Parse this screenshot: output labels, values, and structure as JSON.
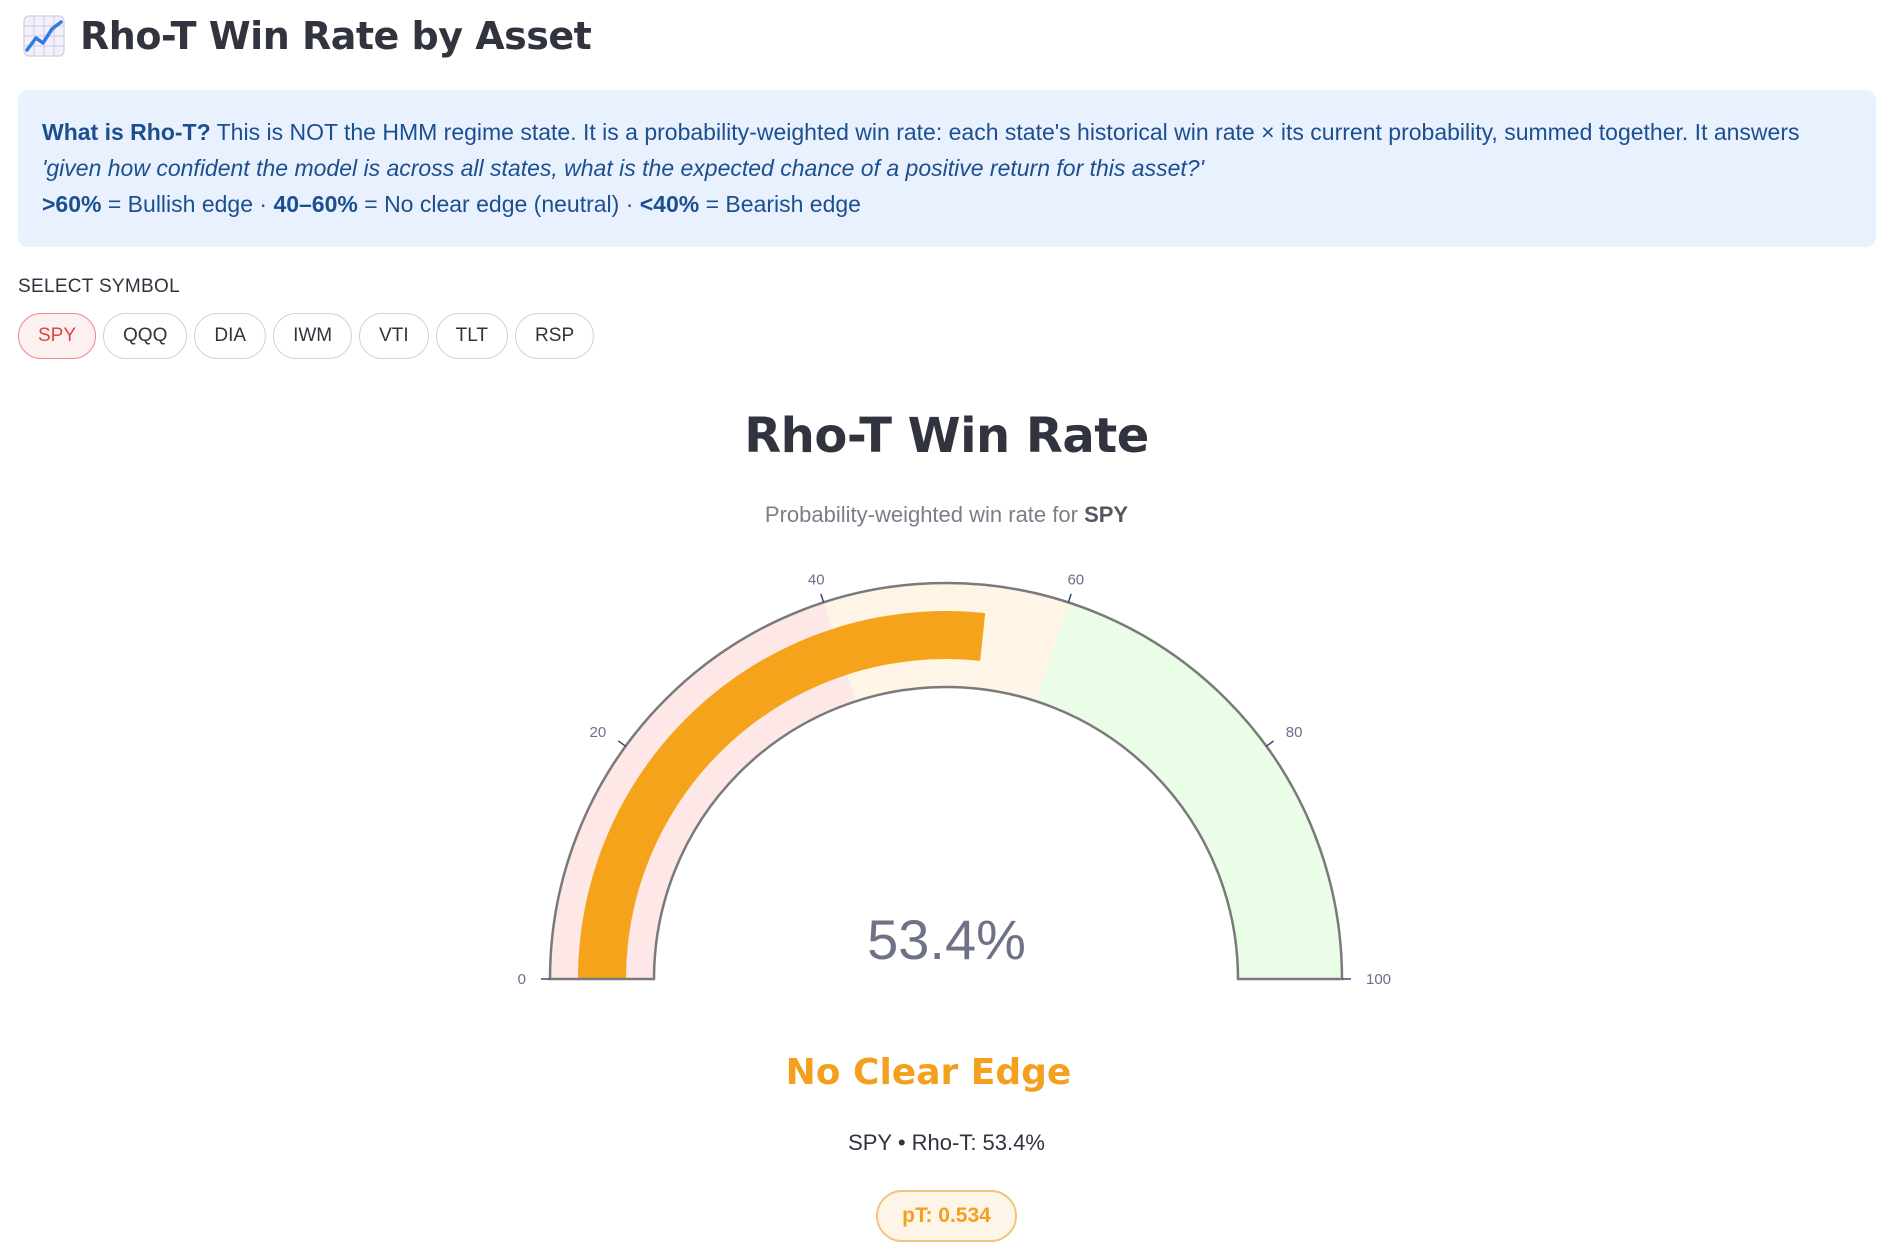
{
  "header": {
    "icon": "chart-increasing-icon",
    "title": "Rho-T Win Rate by Asset"
  },
  "info": {
    "what_label": "What is Rho-T?",
    "body": " This is NOT the HMM regime state. It is a probability-weighted win rate: each state's historical win rate × its current probability, summed together. It answers ",
    "question": "'given how confident the model is across all states, what is the expected chance of a positive return for this asset?'",
    "bull_threshold": ">60%",
    "bull_text": " = Bullish edge · ",
    "neutral_threshold": "40–60%",
    "neutral_text": " = No clear edge (neutral) · ",
    "bear_threshold": "<40%",
    "bear_text": " = Bearish edge"
  },
  "selector": {
    "label": "SELECT SYMBOL",
    "symbols": [
      "SPY",
      "QQQ",
      "DIA",
      "IWM",
      "VTI",
      "TLT",
      "RSP"
    ],
    "selected": "SPY"
  },
  "gauge": {
    "title": "Rho-T Win Rate",
    "subtitle_prefix": "Probability-weighted win rate for ",
    "symbol": "SPY",
    "value_text": "53.4%"
  },
  "chart_data": {
    "type": "gauge",
    "value": 53.4,
    "range": [
      0,
      100
    ],
    "ticks": [
      "0",
      "20",
      "40",
      "60",
      "80",
      "100"
    ],
    "tick_values": [
      0,
      20,
      40,
      60,
      80,
      100
    ],
    "bands": [
      {
        "from": 0,
        "to": 40,
        "color": "#fde7e7"
      },
      {
        "from": 40,
        "to": 60,
        "color": "#fef5e6"
      },
      {
        "from": 60,
        "to": 100,
        "color": "#eafde6"
      }
    ],
    "bar_color": "#f5a31a"
  },
  "result": {
    "edge_label": "No Clear Edge",
    "summary": "SPY • Rho-T: 53.4%",
    "pt_badge": "pT: 0.534"
  },
  "colors": {
    "accent_orange": "#f2a01e",
    "info_bg": "#e8f1fd",
    "info_text": "#1b4f8f",
    "active_pill": "#e0453f"
  }
}
